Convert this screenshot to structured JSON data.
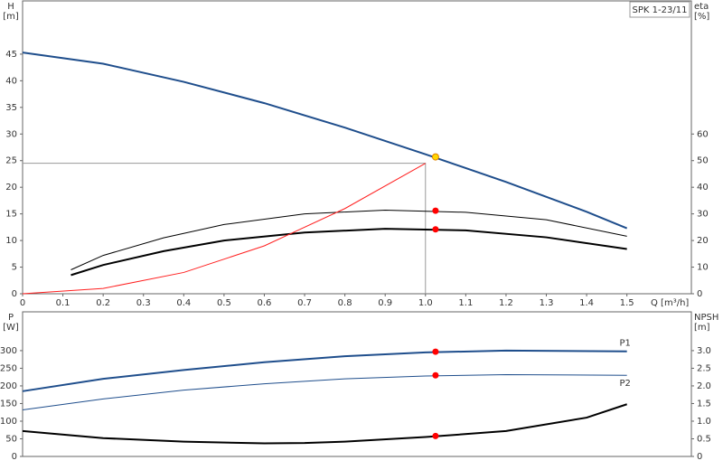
{
  "chart_data": [
    {
      "type": "line",
      "y_label_top": "H",
      "y_label_unit": "[m]",
      "y2_label_top": "eta",
      "y2_label_unit": "[%]",
      "legend_title": "SPK 1-23/11",
      "x_label": "Q [m³/h]",
      "xlim": [
        0,
        1.66
      ],
      "xticks": [
        0,
        0.1,
        0.2,
        0.3,
        0.4,
        0.5,
        0.6,
        0.7,
        0.8,
        0.9,
        {
          "value": 1,
          "label": "1.0"
        },
        1.1,
        1.2,
        1.3,
        1.4,
        1.5
      ],
      "ylim": [
        0,
        55
      ],
      "yticks": [
        0,
        5,
        10,
        15,
        20,
        25,
        30,
        35,
        40,
        45
      ],
      "y2lim": [
        0,
        110
      ],
      "y2ticks": [
        0,
        10,
        20,
        30,
        40,
        50,
        60
      ],
      "series": [
        {
          "color": "#999999",
          "width": 1,
          "x": [
            0,
            1.0,
            1.0
          ],
          "values": [
            24.5,
            24.5,
            0
          ]
        },
        {
          "color": "#1f4e8c",
          "width": 2,
          "x": [
            0,
            0.2,
            0.4,
            0.6,
            0.8,
            1.0,
            1.2,
            1.4,
            1.5
          ],
          "values": [
            45.3,
            43.2,
            39.8,
            35.8,
            31.2,
            26.2,
            21,
            15.4,
            12.3
          ]
        },
        {
          "color": "#000000",
          "width": 1,
          "axis": "y2",
          "x": [
            0.12,
            0.2,
            0.35,
            0.5,
            0.7,
            0.9,
            1.1,
            1.3,
            1.5
          ],
          "values": [
            9,
            14.4,
            21,
            26,
            30,
            31.4,
            30.6,
            27.8,
            21.6
          ]
        },
        {
          "color": "#000000",
          "width": 2,
          "axis": "y2",
          "x": [
            0.12,
            0.2,
            0.35,
            0.5,
            0.7,
            0.9,
            1.1,
            1.3,
            1.5
          ],
          "values": [
            7,
            10.8,
            16,
            20,
            23,
            24.4,
            23.8,
            21.2,
            16.8
          ]
        },
        {
          "color": "#ff2020",
          "width": 1,
          "x": [
            0,
            0.2,
            0.4,
            0.6,
            0.8,
            1.0
          ],
          "values": [
            0,
            1,
            4,
            9,
            16,
            24.5
          ]
        },
        {
          "color": "#ffd700",
          "marker": "circle",
          "x": [
            1.025
          ],
          "values": [
            25.7
          ]
        },
        {
          "color": "#ff0000",
          "marker": "circle",
          "axis": "y2",
          "x": [
            1.025,
            1.025
          ],
          "values": [
            31.2,
            24.2
          ]
        }
      ]
    },
    {
      "type": "line",
      "y_label_top": "P",
      "y_label_unit": "[W]",
      "y2_label_top": "NPSH",
      "y2_label_unit": "[m]",
      "xlim": [
        0,
        1.66
      ],
      "ylim": [
        0,
        410
      ],
      "yticks": [
        0,
        50,
        100,
        150,
        200,
        250,
        300
      ],
      "y2lim": [
        0,
        4.1
      ],
      "y2ticks": [
        0,
        0.5,
        {
          "value": 1,
          "label": "1.0"
        },
        1.5,
        {
          "value": 2,
          "label": "2.0"
        },
        2.5,
        {
          "value": 3,
          "label": "3.0"
        }
      ],
      "series": [
        {
          "name": "P1",
          "color": "#1f4e8c",
          "width": 2,
          "x": [
            0,
            0.2,
            0.4,
            0.6,
            0.8,
            1.0,
            1.2,
            1.5
          ],
          "values": [
            185,
            220,
            245,
            267,
            284,
            295,
            300,
            298
          ]
        },
        {
          "name": "P2",
          "color": "#1f4e8c",
          "width": 1,
          "x": [
            0,
            0.2,
            0.4,
            0.6,
            0.8,
            1.0,
            1.2,
            1.5
          ],
          "values": [
            132,
            163,
            188,
            206,
            220,
            228,
            232,
            230
          ]
        },
        {
          "color": "#000000",
          "width": 2,
          "axis": "y2",
          "x": [
            0,
            0.2,
            0.4,
            0.6,
            0.7,
            0.8,
            1.0,
            1.2,
            1.4,
            1.5
          ],
          "values": [
            0.72,
            0.52,
            0.42,
            0.37,
            0.38,
            0.42,
            0.55,
            0.72,
            1.1,
            1.48
          ]
        },
        {
          "color": "#ff0000",
          "marker": "circle",
          "x": [
            1.025,
            1.025
          ],
          "values": [
            297,
            230
          ]
        },
        {
          "color": "#ff0000",
          "marker": "circle",
          "axis": "y2",
          "x": [
            1.025
          ],
          "values": [
            0.58
          ]
        }
      ]
    }
  ]
}
